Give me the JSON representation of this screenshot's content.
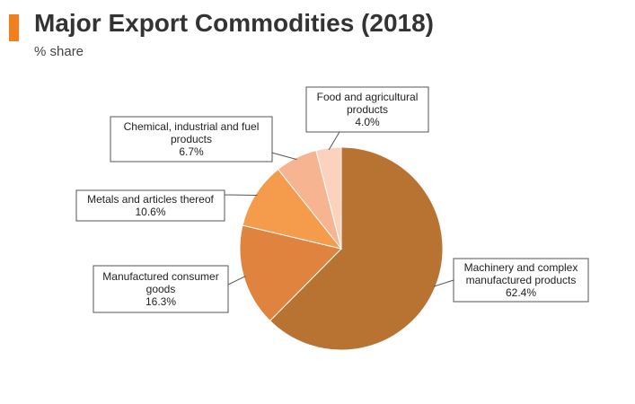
{
  "header": {
    "title": "Major Export Commodities (2018)",
    "subtitle": "% share",
    "accent_color": "#f07f1e"
  },
  "chart_data": {
    "type": "pie",
    "title": "Major Export Commodities (2018)",
    "subtitle": "% share",
    "slices": [
      {
        "label_lines": [
          "Machinery and complex",
          "manufactured products"
        ],
        "value_label": "62.4%",
        "value": 62.4,
        "color": "#b87333"
      },
      {
        "label_lines": [
          "Manufactured consumer",
          "goods"
        ],
        "value_label": "16.3%",
        "value": 16.3,
        "color": "#e0833f"
      },
      {
        "label_lines": [
          "Metals and articles thereof"
        ],
        "value_label": "10.6%",
        "value": 10.6,
        "color": "#f59b4c"
      },
      {
        "label_lines": [
          "Chemical, industrial and fuel",
          "products"
        ],
        "value_label": "6.7%",
        "value": 6.7,
        "color": "#f7b490"
      },
      {
        "label_lines": [
          "Food and agricultural",
          "products"
        ],
        "value_label": "4.0%",
        "value": 4.0,
        "color": "#fbd2bd"
      }
    ],
    "start": "12 o'clock",
    "direction": "clockwise"
  }
}
